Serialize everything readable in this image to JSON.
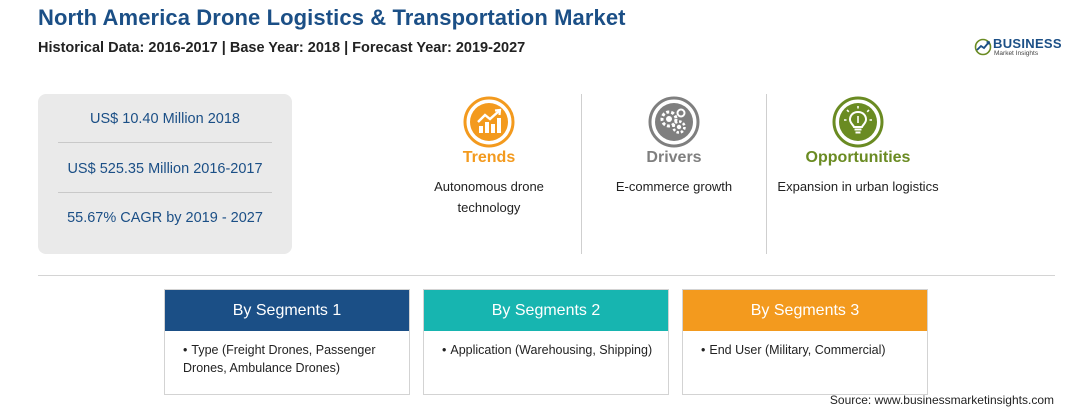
{
  "header": {
    "title": "North America Drone Logistics & Transportation Market",
    "subtitle": "Historical Data: 2016-2017 | Base Year: 2018 | Forecast Year: 2019-2027"
  },
  "logo": {
    "name": "BUSINESS",
    "tagline": "Market Insights"
  },
  "stats": [
    "US$ 10.40 Million 2018",
    "US$ 525.35 Million 2016-2017",
    "55.67% CAGR by 2019 - 2027"
  ],
  "columns": [
    {
      "title": "Trends",
      "text": "Autonomous drone technology",
      "color": "#f39a1e",
      "icon": "chart-growth-icon"
    },
    {
      "title": "Drivers",
      "text": "E-commerce growth",
      "color": "#7f7f7f",
      "icon": "gears-icon"
    },
    {
      "title": "Opportunities",
      "text": "Expansion in urban logistics",
      "color": "#6a8b22",
      "icon": "lightbulb-icon"
    }
  ],
  "segments": [
    {
      "title": "By Segments 1",
      "item": "Type (Freight Drones, Passenger Drones, Ambulance Drones)",
      "color": "#1b4f86"
    },
    {
      "title": "By Segments 2",
      "item": "Application (Warehousing, Shipping)",
      "color": "#17b5b0"
    },
    {
      "title": "By Segments 3",
      "item": "End User (Military, Commercial)",
      "color": "#f39a1e"
    }
  ],
  "bullet": "•",
  "source": "Source: www.businessmarketinsights.com"
}
